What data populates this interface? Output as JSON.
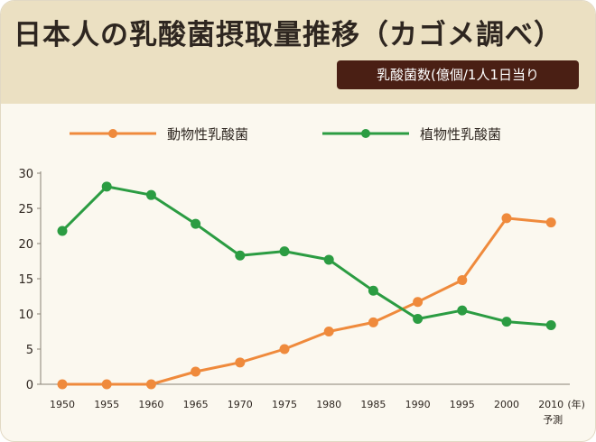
{
  "title": "日本人の乳酸菌摂取量推移（カゴメ調べ）",
  "unit_label": "乳酸菌数(億個/1人1日当り",
  "x_unit": "(年)",
  "x_note": "予測",
  "colors": {
    "animal": "#ef8a3c",
    "plant": "#2b9c42",
    "unit_bg": "#4a1f14",
    "header_bg": "#ebe0c2"
  },
  "chart_data": {
    "type": "line",
    "title": "日本人の乳酸菌摂取量推移（カゴメ調べ）",
    "ylabel": "乳酸菌数(億個/1人1日当り",
    "xlabel": "",
    "x": [
      "1950",
      "1955",
      "1960",
      "1965",
      "1970",
      "1975",
      "1980",
      "1985",
      "1990",
      "1995",
      "2000",
      "2010"
    ],
    "y_ticks": [
      "0",
      "5",
      "10",
      "15",
      "20",
      "25",
      "30"
    ],
    "ylim": [
      0,
      30
    ],
    "grid": false,
    "legend": "top",
    "series": [
      {
        "name": "動物性乳酸菌",
        "values": [
          0,
          0,
          0,
          1.8,
          3.1,
          5.0,
          7.5,
          8.8,
          11.7,
          14.8,
          23.6,
          23.0
        ]
      },
      {
        "name": "植物性乳酸菌",
        "values": [
          21.8,
          28.1,
          26.9,
          22.8,
          18.3,
          18.9,
          17.7,
          13.3,
          9.3,
          10.5,
          8.9,
          8.4
        ]
      }
    ]
  }
}
